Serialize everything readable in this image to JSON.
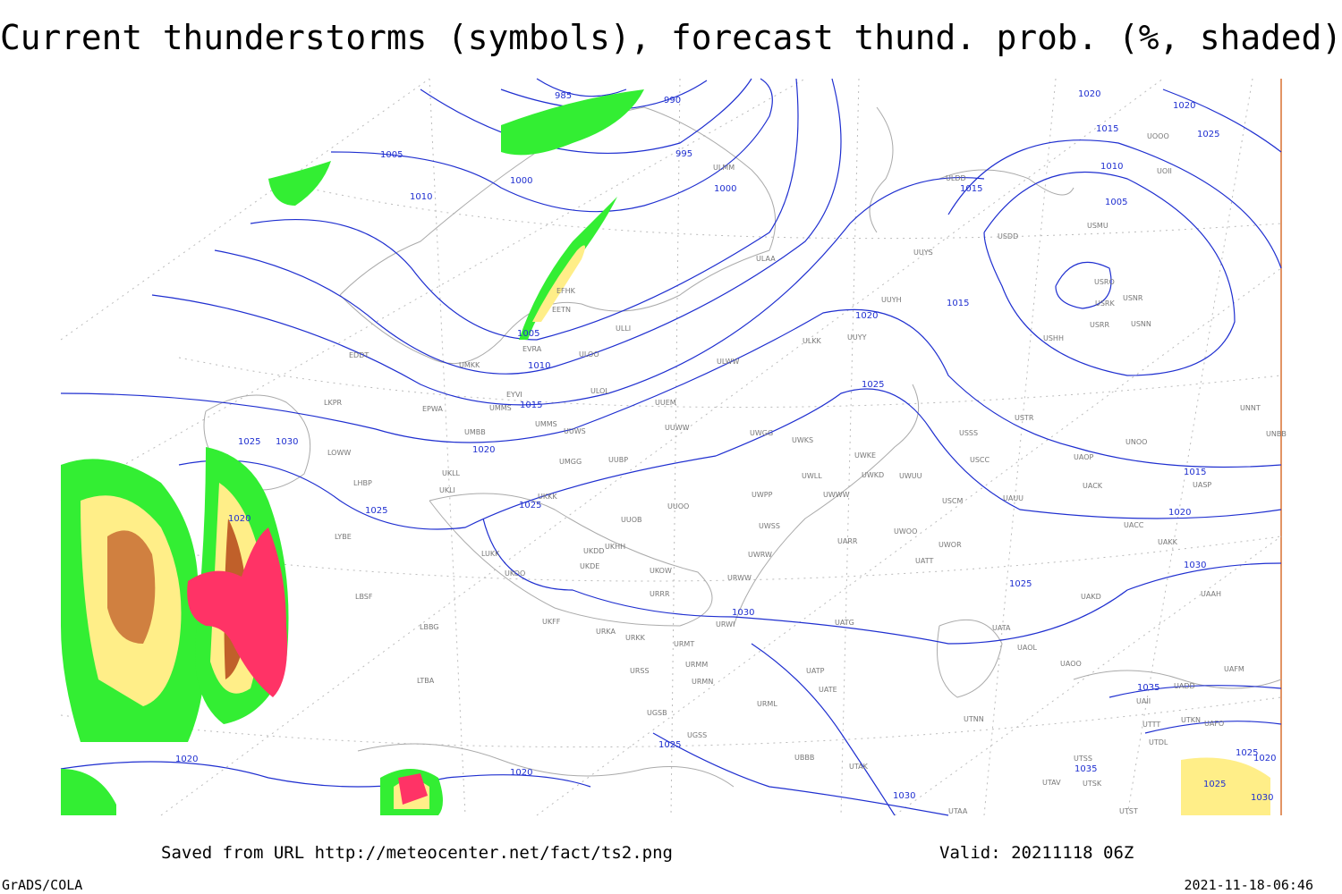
{
  "header": {
    "title": "Current thunderstorms (symbols), forecast thund. prob. (%, shaded)"
  },
  "footer": {
    "saved": "Saved from URL http://meteocenter.net/fact/ts2.png",
    "valid": "Valid: 20211118 06Z",
    "software": "GrADS/COLA",
    "timestamp": "2021-11-18-06:46"
  },
  "isobar_labels": [
    985,
    990,
    995,
    1000,
    1000,
    1005,
    1010,
    1005,
    1010,
    1015,
    1020,
    1025,
    1025,
    1030,
    1020,
    1020,
    1020,
    1025,
    1025,
    1030,
    1030,
    1025,
    1020,
    1015,
    1015,
    1015,
    1010,
    1005,
    1020,
    1020,
    1025,
    1015,
    1020,
    1025,
    1030,
    1035,
    1035,
    1025,
    1020,
    1025,
    1030
  ],
  "stations": [
    "ULMM",
    "ULDD",
    "UUYS",
    "ULAA",
    "USDD",
    "EFHK",
    "EETN",
    "ULLI",
    "EVRA",
    "ULOO",
    "UMKK",
    "EDDT",
    "ULOL",
    "EYVI",
    "UMMS",
    "EPWA",
    "LKPR",
    "UUEM",
    "UMMS",
    "UUWW",
    "UMBB",
    "UMGG",
    "UUBP",
    "UUWS",
    "LOWW",
    "LHBP",
    "UKLL",
    "UKLI",
    "UKKK",
    "UUOO",
    "UUOB",
    "UKHH",
    "UKDD",
    "UKDE",
    "UKOW",
    "UKOO",
    "LUKK",
    "LYBE",
    "LBSF",
    "LBBG",
    "UKFF",
    "URKA",
    "URKK",
    "URRR",
    "URWW",
    "URWI",
    "URMT",
    "URMM",
    "URMN",
    "URSS",
    "LTBA",
    "UGSB",
    "UGSS",
    "UUYH",
    "ULKK",
    "UUYY",
    "ULWW",
    "UWGG",
    "UWKS",
    "UWKE",
    "UWKD",
    "UWUU",
    "UWLL",
    "UWWW",
    "UWPP",
    "UWSS",
    "UWRW",
    "UARR",
    "UWOO",
    "UWOR",
    "UATT",
    "UATG",
    "UATA",
    "UAOL",
    "UATP",
    "UATE",
    "URML",
    "UBBB",
    "UTAK",
    "UTAA",
    "UTNN",
    "USSS",
    "USTR",
    "USCC",
    "USCM",
    "UAUU",
    "UACK",
    "UAOP",
    "UACC",
    "UAKK",
    "UAKD",
    "UNOO",
    "UNNT",
    "UNBB",
    "UASP",
    "USHH",
    "USRR",
    "USNN",
    "USRK",
    "USNR",
    "USRO",
    "USMU",
    "UOOO",
    "UOII",
    "UAAH",
    "UAFM",
    "UADD",
    "UAII",
    "UTTT",
    "UTKN",
    "UTDL",
    "UTSS",
    "UTSK",
    "UTAV",
    "UTST",
    "UAOO",
    "UAFO"
  ]
}
